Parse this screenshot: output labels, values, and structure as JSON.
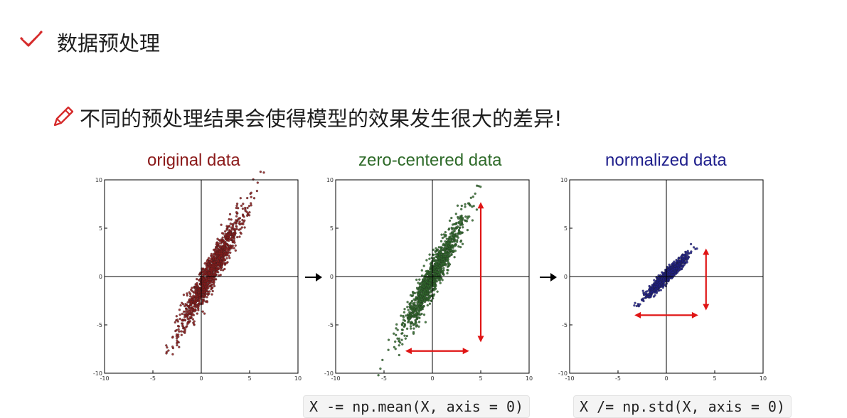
{
  "heading": "数据预处理",
  "subheading": "不同的预处理结果会使得模型的效果发生很大的差异!",
  "icons": {
    "heading": "check-icon",
    "subheading": "pencil-icon",
    "flow": "arrow-right-icon"
  },
  "colors": {
    "original": "#8b1a1a",
    "zero_centered": "#2f6b2a",
    "normalized": "#1f1f8c",
    "arrows": "#e01515",
    "icon": "#d62b2b"
  },
  "code": [
    {
      "text": "X -= np.mean(X, axis = 0)"
    },
    {
      "text": "X /= np.std(X, axis = 0)"
    }
  ],
  "chart_data": [
    {
      "type": "scatter",
      "title": "original data",
      "xlim": [
        -10,
        10
      ],
      "ylim": [
        -10,
        10
      ],
      "xticks": [
        "-10",
        "-5",
        "0",
        "5",
        "10"
      ],
      "yticks": [
        "10",
        "5",
        "0",
        "-5",
        "-10"
      ],
      "grid": false,
      "distribution": {
        "mean": [
          1.0,
          0.5
        ],
        "std_x": 1.6,
        "std_y": 3.0,
        "corr": 0.95,
        "n": 1200
      },
      "color": "#8b1a1a"
    },
    {
      "type": "scatter",
      "title": "zero-centered data",
      "xlim": [
        -10,
        10
      ],
      "ylim": [
        -10,
        10
      ],
      "xticks": [
        "-10",
        "-5",
        "0",
        "5",
        "10"
      ],
      "yticks": [
        "10",
        "5",
        "0",
        "-5",
        "-10"
      ],
      "grid": false,
      "distribution": {
        "mean": [
          0,
          0
        ],
        "std_x": 1.6,
        "std_y": 3.0,
        "corr": 0.95,
        "n": 1200
      },
      "color": "#2f6b2a",
      "annotations": [
        {
          "kind": "double-arrow",
          "from": [
            5,
            7.7
          ],
          "to": [
            5,
            -6.8
          ]
        },
        {
          "kind": "double-arrow",
          "from": [
            -2.8,
            -7.7
          ],
          "to": [
            3.8,
            -7.7
          ]
        }
      ]
    },
    {
      "type": "scatter",
      "title": "normalized data",
      "xlim": [
        -10,
        10
      ],
      "ylim": [
        -10,
        10
      ],
      "xticks": [
        "-10",
        "-5",
        "0",
        "5",
        "10"
      ],
      "yticks": [
        "10",
        "5",
        "0",
        "-5",
        "-10"
      ],
      "grid": false,
      "distribution": {
        "mean": [
          0,
          0
        ],
        "std_x": 1.0,
        "std_y": 1.0,
        "corr": 0.95,
        "n": 1200
      },
      "color": "#1f1f8c",
      "annotations": [
        {
          "kind": "double-arrow",
          "from": [
            4.1,
            2.9
          ],
          "to": [
            4.1,
            -3.5
          ]
        },
        {
          "kind": "double-arrow",
          "from": [
            -3.3,
            -4.0
          ],
          "to": [
            3.3,
            -4.0
          ]
        }
      ]
    }
  ]
}
